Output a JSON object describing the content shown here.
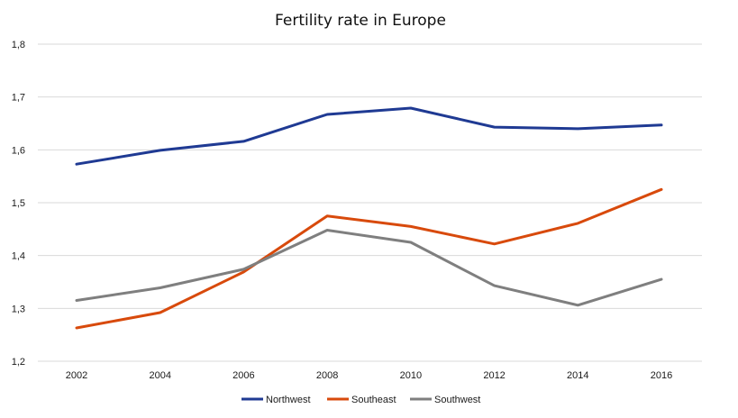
{
  "chart_data": {
    "type": "line",
    "title": "Fertility rate in Europe",
    "xlabel": "",
    "ylabel": "",
    "categories": [
      "2002",
      "2004",
      "2006",
      "2008",
      "2010",
      "2012",
      "2014",
      "2016"
    ],
    "ylim": [
      1.2,
      1.8
    ],
    "yticks": [
      "1,2",
      "1,3",
      "1,4",
      "1,5",
      "1,6",
      "1,7",
      "1,8"
    ],
    "grid": true,
    "legend_position": "bottom",
    "series": [
      {
        "name": "Northwest",
        "color": "#1f3a93",
        "values": [
          1.573,
          1.599,
          1.616,
          1.667,
          1.679,
          1.643,
          1.64,
          1.647
        ]
      },
      {
        "name": "Southeast",
        "color": "#d84a0c",
        "values": [
          1.263,
          1.292,
          1.369,
          1.475,
          1.455,
          1.422,
          1.461,
          1.525
        ]
      },
      {
        "name": "Southwest",
        "color": "#7f7f7f",
        "values": [
          1.315,
          1.339,
          1.374,
          1.448,
          1.425,
          1.343,
          1.306,
          1.355
        ]
      }
    ]
  }
}
